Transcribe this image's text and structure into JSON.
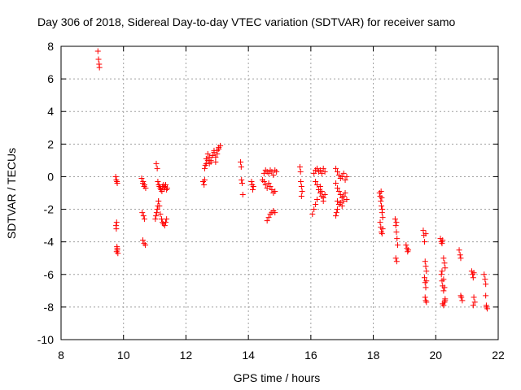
{
  "chart_data": {
    "type": "scatter",
    "title": "Day 306 of 2018, Sidereal Day-to-day VTEC variation (SDTVAR) for receiver samo",
    "xlabel": "GPS time / hours",
    "ylabel": "SDTVAR / TECUs",
    "xlim": [
      8,
      22
    ],
    "ylim": [
      -10,
      8
    ],
    "xticks": [
      "8",
      "10",
      "12",
      "14",
      "16",
      "18",
      "20",
      "22"
    ],
    "yticks": [
      "-10",
      "-8",
      "-6",
      "-4",
      "-2",
      "0",
      "2",
      "4",
      "6",
      "8"
    ],
    "grid": true,
    "marker": "plus",
    "colors": {
      "points": "#ff0000",
      "grid": "#a0a0a0",
      "frame": "#000000"
    },
    "series": [
      {
        "name": "SDTVAR",
        "x": [
          9.18,
          9.2,
          9.22,
          9.23,
          9.75,
          9.77,
          9.79,
          9.8,
          9.78,
          9.76,
          9.77,
          9.79,
          9.8,
          9.78,
          9.8,
          9.82,
          10.58,
          10.62,
          10.66,
          10.6,
          10.64,
          10.67,
          10.62,
          10.66,
          10.7,
          10.63,
          10.67,
          10.71,
          11.05,
          11.08,
          11.1,
          11.13,
          11.15,
          11.18,
          11.2,
          11.23,
          11.25,
          11.28,
          11.3,
          11.33,
          11.35,
          11.38,
          11.4,
          11.12,
          11.15,
          11.18,
          11.22,
          11.25,
          11.28,
          11.32,
          11.35,
          11.38,
          11.02,
          11.04,
          11.06,
          11.08,
          11.1,
          11.12,
          12.55,
          12.6,
          12.65,
          12.7,
          12.75,
          12.8,
          12.85,
          12.9,
          12.95,
          13.0,
          13.05,
          13.1,
          12.62,
          12.65,
          12.7,
          12.75,
          12.8,
          12.85,
          12.9,
          12.95,
          13.0,
          13.05,
          12.58,
          12.6,
          13.75,
          13.77,
          13.78,
          13.8,
          13.82,
          14.1,
          14.12,
          14.14,
          14.16,
          14.45,
          14.5,
          14.55,
          14.6,
          14.65,
          14.7,
          14.75,
          14.8,
          14.85,
          14.9,
          14.5,
          14.55,
          14.6,
          14.65,
          14.7,
          14.75,
          14.8,
          14.85,
          14.6,
          14.65,
          14.7,
          14.75,
          14.8,
          14.85,
          15.65,
          15.67,
          15.68,
          15.7,
          15.72,
          15.7,
          16.1,
          16.15,
          16.2,
          16.25,
          16.3,
          16.35,
          16.4,
          16.45,
          16.15,
          16.2,
          16.25,
          16.3,
          16.35,
          16.4,
          16.3,
          16.35,
          16.4,
          16.45,
          16.05,
          16.1,
          16.15,
          16.2,
          16.8,
          16.85,
          16.9,
          16.95,
          17.0,
          17.05,
          17.1,
          17.15,
          16.8,
          16.85,
          16.9,
          16.95,
          17.0,
          17.05,
          17.1,
          17.15,
          16.85,
          16.9,
          16.95,
          17.0,
          17.05,
          16.8,
          16.82,
          16.85,
          18.2,
          18.22,
          18.24,
          18.26,
          18.28,
          18.3,
          18.22,
          18.24,
          18.26,
          18.28,
          18.3,
          18.25,
          18.27,
          18.29,
          18.7,
          18.72,
          18.74,
          18.76,
          18.78,
          18.72,
          18.75,
          18.74,
          19.05,
          19.08,
          19.1,
          19.12,
          19.6,
          19.62,
          19.64,
          19.66,
          19.68,
          19.7,
          19.64,
          19.66,
          19.68,
          19.7,
          19.66,
          19.68,
          19.7,
          19.68,
          20.15,
          20.18,
          20.2,
          20.22,
          20.25,
          20.28,
          20.3,
          20.18,
          20.2,
          20.22,
          20.25,
          20.28,
          20.3,
          20.22,
          20.25,
          20.28,
          20.3,
          20.2,
          20.25,
          20.75,
          20.78,
          20.8,
          20.82,
          20.85,
          20.8,
          21.15,
          21.18,
          21.2,
          21.22,
          21.25,
          21.2,
          21.22,
          21.55,
          21.58,
          21.6,
          21.62,
          21.65,
          21.6,
          21.62
        ],
        "y": [
          7.7,
          7.2,
          6.9,
          6.7,
          0.0,
          -0.2,
          -0.3,
          -0.4,
          -2.8,
          -3.0,
          -3.2,
          -4.3,
          -4.5,
          -4.6,
          -4.4,
          -4.7,
          -0.1,
          -0.4,
          -0.6,
          -2.2,
          -2.4,
          -2.6,
          -3.9,
          -4.1,
          -4.2,
          -0.3,
          -0.5,
          -0.7,
          0.8,
          0.5,
          -0.3,
          -0.5,
          -0.6,
          -0.7,
          -0.8,
          -0.9,
          -0.6,
          -0.5,
          -0.7,
          -0.6,
          -0.5,
          -0.8,
          -0.7,
          -1.5,
          -1.8,
          -2.3,
          -2.6,
          -2.8,
          -2.9,
          -3.0,
          -2.8,
          -2.6,
          -2.6,
          -2.4,
          -2.2,
          -2.0,
          -1.8,
          -1.5,
          -0.3,
          0.5,
          0.8,
          1.0,
          1.2,
          0.9,
          1.3,
          1.5,
          1.2,
          1.6,
          1.8,
          1.9,
          0.7,
          1.1,
          1.4,
          0.8,
          1.0,
          1.3,
          1.6,
          0.9,
          1.4,
          1.7,
          -0.5,
          -0.2,
          0.9,
          0.6,
          -0.2,
          -0.4,
          -1.1,
          -0.3,
          -0.5,
          -0.8,
          -0.6,
          -0.2,
          0.2,
          0.4,
          0.3,
          0.2,
          0.4,
          0.3,
          0.1,
          0.4,
          0.3,
          -0.3,
          -0.5,
          -0.7,
          -0.4,
          -0.6,
          -0.8,
          -1.0,
          -0.9,
          -2.7,
          -2.5,
          -2.3,
          -2.2,
          -2.1,
          -2.2,
          0.6,
          0.3,
          -0.3,
          -0.6,
          -0.9,
          -1.2,
          0.2,
          0.4,
          0.5,
          0.3,
          0.4,
          0.2,
          0.5,
          0.3,
          -0.3,
          -0.5,
          -0.8,
          -1.0,
          -1.2,
          -1.3,
          -0.6,
          -0.9,
          -1.5,
          -1.1,
          -2.3,
          -2.0,
          -1.7,
          -1.4,
          0.5,
          0.3,
          0.1,
          -0.1,
          0.0,
          0.2,
          -0.2,
          0.0,
          -0.4,
          -0.7,
          -0.9,
          -1.1,
          -1.3,
          -1.2,
          -1.0,
          -1.4,
          -1.5,
          -1.7,
          -1.6,
          -1.8,
          -1.5,
          -2.4,
          -2.2,
          -2.0,
          -1.0,
          -1.2,
          -1.5,
          -1.8,
          -2.2,
          -2.5,
          -2.8,
          -3.1,
          -3.4,
          -3.5,
          -3.2,
          -0.9,
          -1.3,
          -2.0,
          -2.6,
          -3.0,
          -3.4,
          -3.8,
          -4.2,
          -5.0,
          -5.2,
          -2.8,
          -4.2,
          -4.4,
          -4.6,
          -4.5,
          -3.3,
          -3.6,
          -4.0,
          -5.2,
          -5.5,
          -5.8,
          -6.2,
          -6.5,
          -6.8,
          -6.4,
          -7.4,
          -7.6,
          -7.7,
          -3.5,
          -3.8,
          -4.0,
          -4.1,
          -3.9,
          -5.0,
          -5.3,
          -5.6,
          -6.0,
          -6.4,
          -6.7,
          -7.0,
          -6.8,
          -7.6,
          -7.8,
          -7.9,
          -7.7,
          -7.5,
          -5.8,
          -6.3,
          -4.5,
          -4.8,
          -5.0,
          -7.4,
          -7.6,
          -7.3,
          -5.8,
          -6.0,
          -6.2,
          -7.4,
          -7.7,
          -7.9,
          -5.9,
          -6.0,
          -6.3,
          -6.6,
          -7.9,
          -8.1,
          -7.3,
          -8.0
        ]
      }
    ]
  }
}
